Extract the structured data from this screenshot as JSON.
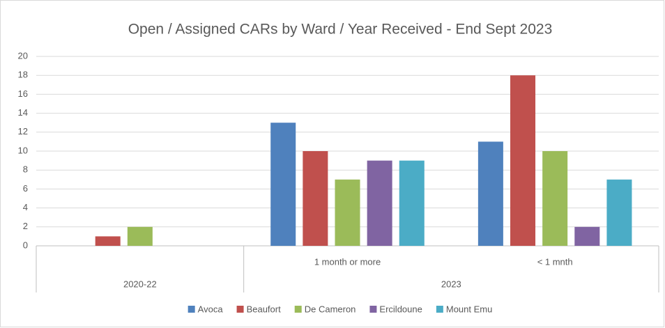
{
  "chart_data": {
    "type": "bar",
    "title": "Open / Assigned CARs by Ward / Year Received - End Sept 2023",
    "groups": [
      {
        "label": "2020-22",
        "categories": [
          null
        ]
      },
      {
        "label": "2023",
        "categories": [
          "1 month or more",
          "< 1 mnth"
        ]
      }
    ],
    "series": [
      {
        "name": "Avoca",
        "color": "#4f81bd",
        "values": [
          null,
          13,
          11
        ]
      },
      {
        "name": "Beaufort",
        "color": "#c0504d",
        "values": [
          1,
          10,
          18
        ]
      },
      {
        "name": "De Cameron",
        "color": "#9bbb59",
        "values": [
          2,
          7,
          10
        ]
      },
      {
        "name": "Ercildoune",
        "color": "#8064a2",
        "values": [
          null,
          9,
          2
        ]
      },
      {
        "name": "Mount Emu",
        "color": "#4bacc6",
        "values": [
          null,
          9,
          7
        ]
      }
    ],
    "ylim": [
      0,
      20
    ],
    "yticks": [
      0,
      2,
      4,
      6,
      8,
      10,
      12,
      14,
      16,
      18,
      20
    ],
    "grid": true,
    "legend": "bottom"
  }
}
